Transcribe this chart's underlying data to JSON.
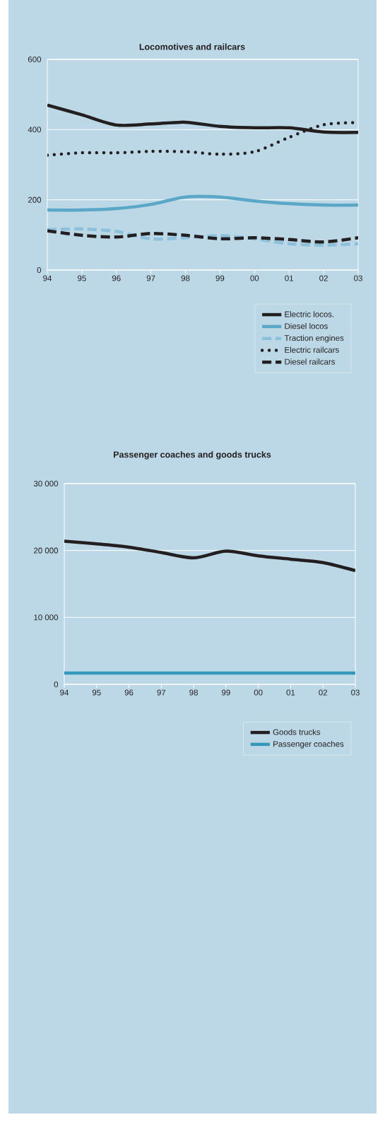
{
  "chart_data": [
    {
      "type": "line",
      "title": "Locomotives and railcars",
      "categories": [
        "94",
        "95",
        "96",
        "97",
        "98",
        "99",
        "00",
        "01",
        "02",
        "03"
      ],
      "ylim": [
        0,
        600
      ],
      "yticks": [
        0,
        200,
        400,
        600
      ],
      "grid": "y",
      "legend": "bottom right",
      "series": [
        {
          "name": "Electric locos.",
          "color": "#231f20",
          "line_style": "solid",
          "values": [
            470,
            442,
            413,
            416,
            421,
            409,
            405,
            405,
            393,
            392
          ]
        },
        {
          "name": "Diesel locos",
          "color": "#5ba7c8",
          "line_style": "solid",
          "values": [
            171,
            171,
            175,
            187,
            208,
            208,
            197,
            189,
            185,
            185
          ]
        },
        {
          "name": "Traction engines",
          "color": "#8cc0db",
          "line_style": "dashed",
          "values": [
            115,
            117,
            110,
            89,
            92,
            98,
            89,
            75,
            71,
            75
          ]
        },
        {
          "name": "Electric railcars",
          "color": "#231f20",
          "line_style": "dotted",
          "values": [
            327,
            334,
            334,
            338,
            337,
            330,
            337,
            378,
            414,
            420
          ]
        },
        {
          "name": "Diesel railcars",
          "color": "#231f20",
          "line_style": "dashed",
          "values": [
            112,
            99,
            94,
            104,
            99,
            89,
            92,
            87,
            80,
            92
          ]
        }
      ]
    },
    {
      "type": "line",
      "title": "Passenger coaches and goods trucks",
      "categories": [
        "94",
        "95",
        "96",
        "97",
        "98",
        "99",
        "00",
        "01",
        "02",
        "03"
      ],
      "ylim": [
        0,
        30000
      ],
      "yticks": [
        0,
        {
          "value": 10000,
          "label": "10 000"
        },
        {
          "value": 20000,
          "label": "20 000"
        },
        {
          "value": 30000,
          "label": "30 000"
        }
      ],
      "grid": "y",
      "legend": "bottom right",
      "series": [
        {
          "name": "Goods trucks",
          "color": "#231f20",
          "line_style": "solid",
          "values": [
            21400,
            21000,
            20500,
            19700,
            18900,
            19900,
            19200,
            18700,
            18200,
            17000
          ]
        },
        {
          "name": "Passenger coaches",
          "color": "#3498bb",
          "line_style": "solid",
          "values": [
            1700,
            1700,
            1700,
            1700,
            1700,
            1700,
            1700,
            1700,
            1700,
            1700
          ]
        }
      ]
    }
  ]
}
